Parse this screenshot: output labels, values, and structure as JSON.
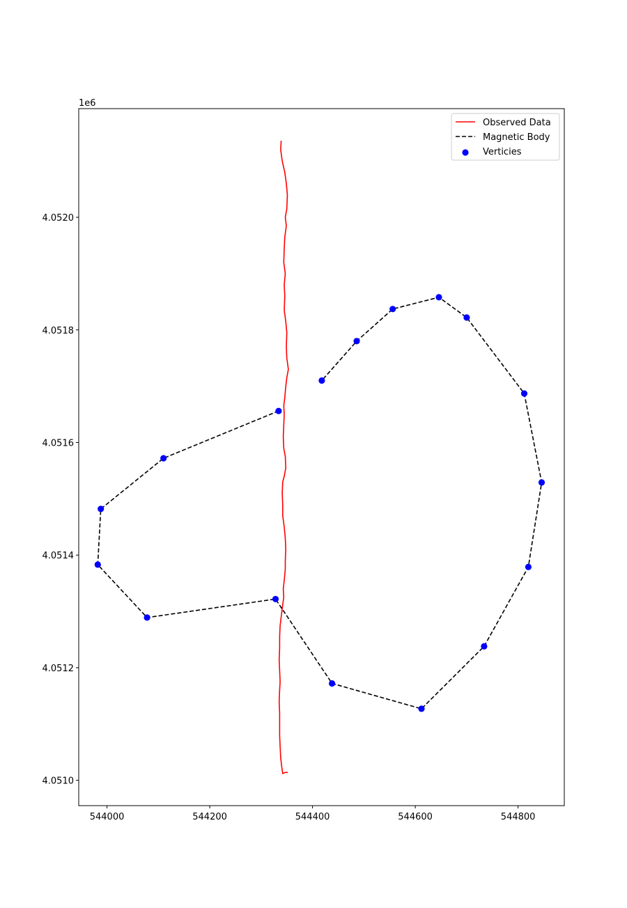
{
  "chart_data": {
    "type": "line",
    "title": "",
    "xlabel": "",
    "ylabel": "",
    "y_offset_label": "1e6",
    "xlim": [
      543945,
      544890
    ],
    "ylim": [
      4050955,
      4052193
    ],
    "xticks": [
      544000,
      544200,
      544400,
      544600,
      544800
    ],
    "xtick_labels": [
      "544000",
      "544200",
      "544400",
      "544600",
      "544800"
    ],
    "yticks": [
      4051000,
      4051200,
      4051400,
      4051600,
      4051800,
      4052000
    ],
    "ytick_labels": [
      "4.0510",
      "4.0512",
      "4.0514",
      "4.0516",
      "4.0518",
      "4.0520"
    ],
    "grid": false,
    "legend_position": "upper right",
    "series": [
      {
        "name": "Observed Data",
        "kind": "line",
        "color": "#ff0000",
        "style": "solid",
        "points": [
          [
            544339,
            4052136
          ],
          [
            544338,
            4052120
          ],
          [
            544341,
            4052100
          ],
          [
            544346,
            4052080
          ],
          [
            544349,
            4052060
          ],
          [
            544351,
            4052040
          ],
          [
            544350,
            4052015
          ],
          [
            544347,
            4052000
          ],
          [
            544349,
            4051985
          ],
          [
            544346,
            4051965
          ],
          [
            544345,
            4051945
          ],
          [
            544344,
            4051920
          ],
          [
            544347,
            4051900
          ],
          [
            544345,
            4051880
          ],
          [
            544346,
            4051860
          ],
          [
            544345,
            4051835
          ],
          [
            544348,
            4051815
          ],
          [
            544350,
            4051795
          ],
          [
            544349,
            4051770
          ],
          [
            544350,
            4051750
          ],
          [
            544353,
            4051730
          ],
          [
            544350,
            4051715
          ],
          [
            544348,
            4051700
          ],
          [
            544346,
            4051680
          ],
          [
            544344,
            4051665
          ],
          [
            544345,
            4051650
          ],
          [
            544344,
            4051630
          ],
          [
            544343,
            4051610
          ],
          [
            544344,
            4051590
          ],
          [
            544347,
            4051575
          ],
          [
            544348,
            4051555
          ],
          [
            544345,
            4051540
          ],
          [
            544342,
            4051530
          ],
          [
            544341,
            4051510
          ],
          [
            544342,
            4051490
          ],
          [
            544342,
            4051470
          ],
          [
            544345,
            4051450
          ],
          [
            544347,
            4051430
          ],
          [
            544348,
            4051410
          ],
          [
            544347,
            4051390
          ],
          [
            544347,
            4051375
          ],
          [
            544345,
            4051355
          ],
          [
            544343,
            4051340
          ],
          [
            544344,
            4051325
          ],
          [
            544341,
            4051305
          ],
          [
            544339,
            4051290
          ],
          [
            544337,
            4051275
          ],
          [
            544336,
            4051255
          ],
          [
            544336,
            4051235
          ],
          [
            544335,
            4051215
          ],
          [
            544336,
            4051195
          ],
          [
            544337,
            4051175
          ],
          [
            544336,
            4051160
          ],
          [
            544335,
            4051140
          ],
          [
            544336,
            4051120
          ],
          [
            544336,
            4051100
          ],
          [
            544336,
            4051080
          ],
          [
            544337,
            4051060
          ],
          [
            544338,
            4051040
          ],
          [
            544340,
            4051025
          ],
          [
            544342,
            4051012
          ],
          [
            544347,
            4051014
          ],
          [
            544352,
            4051014
          ]
        ]
      },
      {
        "name": "Magnetic Body",
        "kind": "line",
        "color": "#000000",
        "style": "dashed",
        "points": [
          [
            544334,
            4051656
          ],
          [
            544110,
            4051572
          ],
          [
            543988,
            4051482
          ],
          [
            543982,
            4051383
          ],
          [
            544078,
            4051289
          ],
          [
            544328,
            4051322
          ],
          [
            544438,
            4051172
          ],
          [
            544612,
            4051127
          ],
          [
            544734,
            4051238
          ],
          [
            544820,
            4051379
          ],
          [
            544846,
            4051529
          ],
          [
            544812,
            4051687
          ],
          [
            544700,
            4051822
          ],
          [
            544646,
            4051858
          ],
          [
            544556,
            4051837
          ],
          [
            544486,
            4051780
          ],
          [
            544418,
            4051710
          ]
        ]
      },
      {
        "name": "Verticies",
        "kind": "scatter",
        "color": "#0000ff",
        "points": [
          [
            544334,
            4051656
          ],
          [
            544110,
            4051572
          ],
          [
            543988,
            4051482
          ],
          [
            543982,
            4051383
          ],
          [
            544078,
            4051289
          ],
          [
            544328,
            4051322
          ],
          [
            544438,
            4051172
          ],
          [
            544612,
            4051127
          ],
          [
            544734,
            4051238
          ],
          [
            544820,
            4051379
          ],
          [
            544846,
            4051529
          ],
          [
            544812,
            4051687
          ],
          [
            544700,
            4051822
          ],
          [
            544646,
            4051858
          ],
          [
            544556,
            4051837
          ],
          [
            544486,
            4051780
          ],
          [
            544418,
            4051710
          ]
        ]
      }
    ]
  }
}
